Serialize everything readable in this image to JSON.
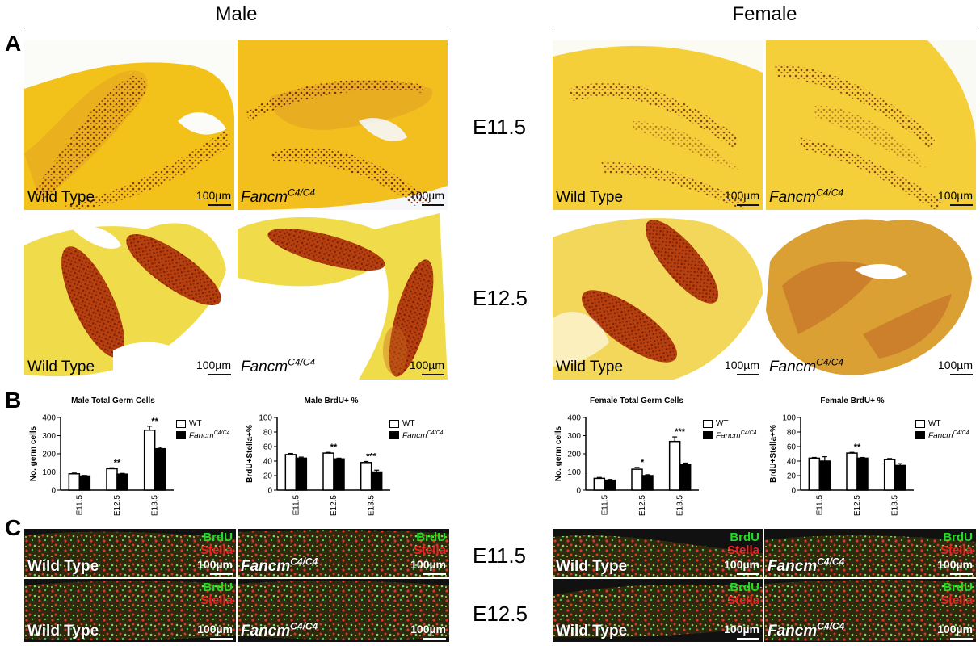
{
  "headers": {
    "male": "Male",
    "female": "Female"
  },
  "panel_letters": {
    "a": "A",
    "b": "B",
    "c": "C"
  },
  "stages": {
    "a_e115": "E11.5",
    "a_e125": "E12.5",
    "c_e115": "E11.5",
    "c_e125": "E12.5"
  },
  "labels": {
    "wild_type": "Wild Type",
    "fancm_base": "Fancm",
    "fancm_sup": "C4/C4",
    "scale": "100µm",
    "brdu": "BrdU",
    "stella": "Stella"
  },
  "colors": {
    "bar_wt": "#ffffff",
    "bar_mut": "#000000",
    "brdu_text": "#22dd22",
    "stella_text": "#ee2222"
  },
  "legend": {
    "wt": "WT",
    "mut_base": "Fancm",
    "mut_sup": "C4/C4"
  },
  "chart_data": [
    {
      "type": "bar",
      "title": "Male Total Germ Cells",
      "ylabel": "No. germ cells",
      "categories": [
        "E11.5",
        "E12.5",
        "E13.5"
      ],
      "ylim": [
        0,
        400
      ],
      "yticks": [
        0,
        100,
        200,
        300,
        400
      ],
      "series": [
        {
          "name": "WT",
          "values": [
            90,
            118,
            330
          ],
          "errors": [
            4,
            5,
            22
          ]
        },
        {
          "name": "FancmC4/C4",
          "values": [
            78,
            88,
            228
          ],
          "errors": [
            3,
            4,
            8
          ]
        }
      ],
      "annotations": [
        "",
        "**",
        "**"
      ]
    },
    {
      "type": "bar",
      "title": "Male BrdU+ %",
      "ylabel": "BrdU+Stella+%",
      "categories": [
        "E11.5",
        "E12.5",
        "E13.5"
      ],
      "ylim": [
        0,
        100
      ],
      "yticks": [
        0,
        20,
        40,
        60,
        80,
        100
      ],
      "series": [
        {
          "name": "WT",
          "values": [
            49,
            51,
            38
          ],
          "errors": [
            1.5,
            1,
            1.5
          ]
        },
        {
          "name": "FancmC4/C4",
          "values": [
            44,
            43,
            25
          ],
          "errors": [
            1.5,
            1,
            2.5
          ]
        }
      ],
      "annotations": [
        "",
        "**",
        "***"
      ]
    },
    {
      "type": "bar",
      "title": "Female Total Germ Cells",
      "ylabel": "No. germ cells",
      "categories": [
        "E11.5",
        "E12.5",
        "E13.5"
      ],
      "ylim": [
        0,
        400
      ],
      "yticks": [
        0,
        100,
        200,
        300,
        400
      ],
      "series": [
        {
          "name": "WT",
          "values": [
            65,
            115,
            268
          ],
          "errors": [
            5,
            10,
            25
          ]
        },
        {
          "name": "FancmC4/C4",
          "values": [
            55,
            80,
            143
          ],
          "errors": [
            4,
            5,
            6
          ]
        }
      ],
      "annotations": [
        "",
        "*",
        "***"
      ]
    },
    {
      "type": "bar",
      "title": "Female BrdU+ %",
      "ylabel": "BrdU+Stella+%",
      "categories": [
        "E11.5",
        "E12.5",
        "E13.5"
      ],
      "ylim": [
        0,
        100
      ],
      "yticks": [
        0,
        20,
        40,
        60,
        80,
        100
      ],
      "series": [
        {
          "name": "WT",
          "values": [
            44,
            51,
            42
          ],
          "errors": [
            1,
            1,
            1.5
          ]
        },
        {
          "name": "FancmC4/C4",
          "values": [
            40,
            44,
            34
          ],
          "errors": [
            6,
            1,
            2.5
          ]
        }
      ],
      "annotations": [
        "",
        "**",
        ""
      ]
    }
  ]
}
